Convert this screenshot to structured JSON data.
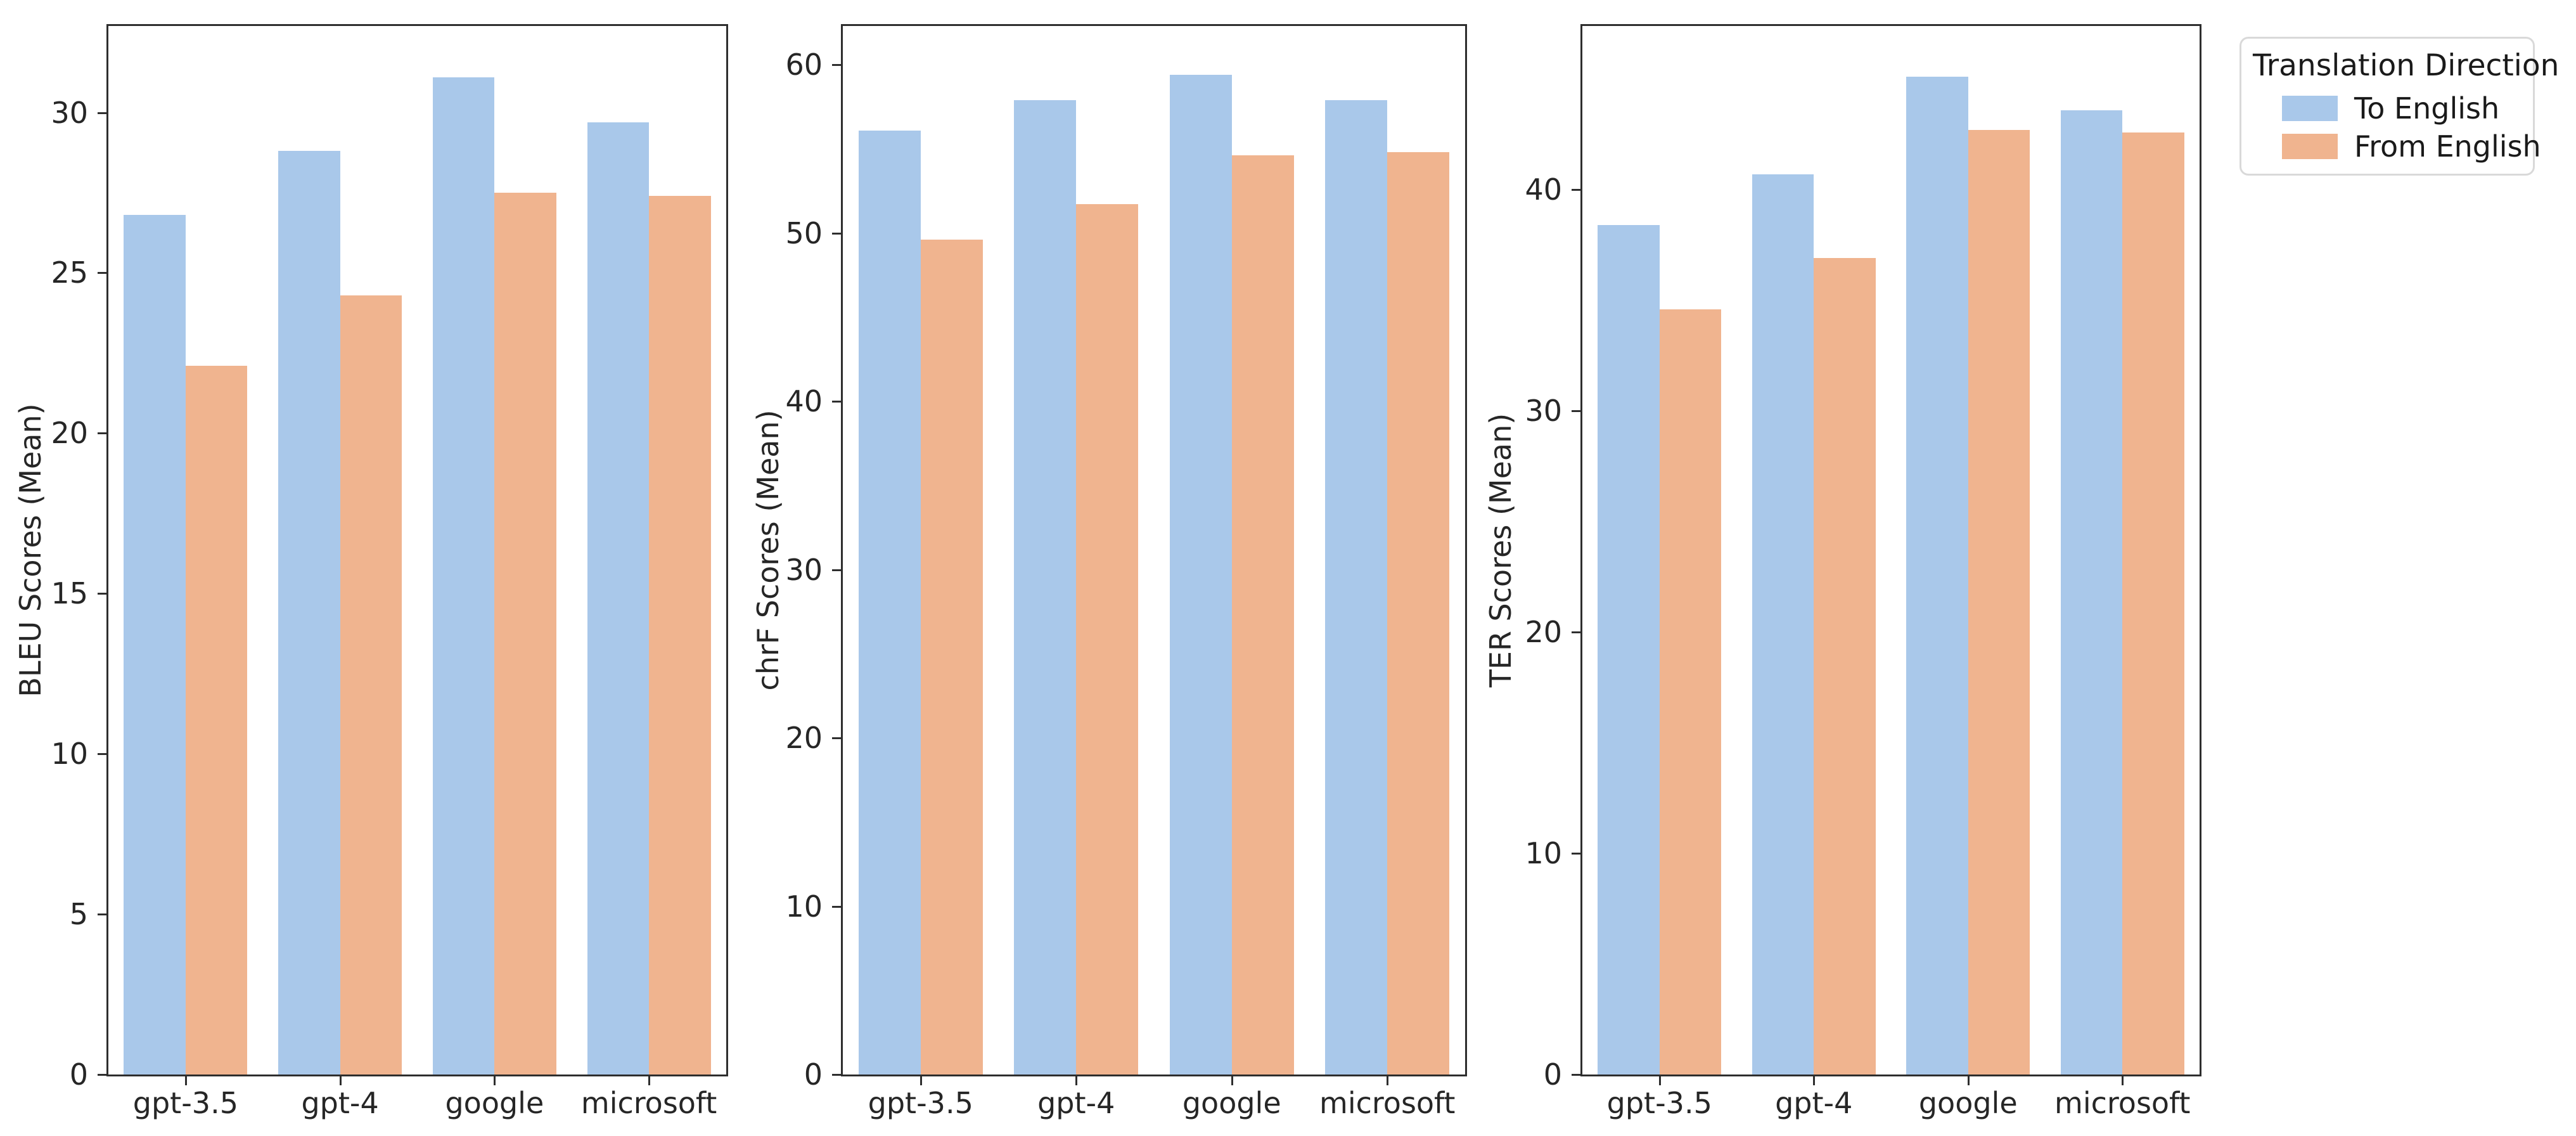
{
  "figure": {
    "background": "#ffffff",
    "spine_color": "#2e2e2e",
    "text_color": "#262626"
  },
  "legend": {
    "title": "Translation Direction",
    "position": "upper right, outside axes",
    "items": [
      {
        "label": "To English",
        "color": "#a9c8ea"
      },
      {
        "label": "From English",
        "color": "#f0b48f"
      }
    ]
  },
  "chart_data": [
    {
      "type": "bar",
      "title": "",
      "xlabel": "",
      "ylabel": "BLEU Scores (Mean)",
      "categories": [
        "gpt-3.5",
        "gpt-4",
        "google",
        "microsoft"
      ],
      "series": [
        {
          "name": "To English",
          "color": "#a9c8ea",
          "values": [
            26.8,
            28.8,
            31.1,
            29.7
          ]
        },
        {
          "name": "From English",
          "color": "#f0b48f",
          "values": [
            22.1,
            24.3,
            27.5,
            27.4
          ]
        }
      ],
      "yticks": [
        0,
        5,
        10,
        15,
        20,
        25,
        30
      ],
      "ylim": [
        0,
        32.7
      ],
      "grid": false,
      "legend_position": "shared figure legend, outside right"
    },
    {
      "type": "bar",
      "title": "",
      "xlabel": "",
      "ylabel": "chrF Scores (Mean)",
      "categories": [
        "gpt-3.5",
        "gpt-4",
        "google",
        "microsoft"
      ],
      "series": [
        {
          "name": "To English",
          "color": "#a9c8ea",
          "values": [
            56.1,
            57.9,
            59.4,
            57.9
          ]
        },
        {
          "name": "From English",
          "color": "#f0b48f",
          "values": [
            49.6,
            51.7,
            54.6,
            54.8
          ]
        }
      ],
      "yticks": [
        0,
        10,
        20,
        30,
        40,
        50,
        60
      ],
      "ylim": [
        0,
        62.3
      ],
      "grid": false,
      "legend_position": "shared figure legend, outside right"
    },
    {
      "type": "bar",
      "title": "",
      "xlabel": "",
      "ylabel": "TER Scores (Mean)",
      "categories": [
        "gpt-3.5",
        "gpt-4",
        "google",
        "microsoft"
      ],
      "series": [
        {
          "name": "To English",
          "color": "#a9c8ea",
          "values": [
            38.4,
            40.7,
            45.1,
            43.6
          ]
        },
        {
          "name": "From English",
          "color": "#f0b48f",
          "values": [
            34.6,
            36.9,
            42.7,
            42.6
          ]
        }
      ],
      "yticks": [
        0,
        10,
        20,
        30,
        40
      ],
      "ylim": [
        0,
        47.4
      ],
      "grid": false,
      "legend_position": "shared figure legend, outside right"
    }
  ]
}
